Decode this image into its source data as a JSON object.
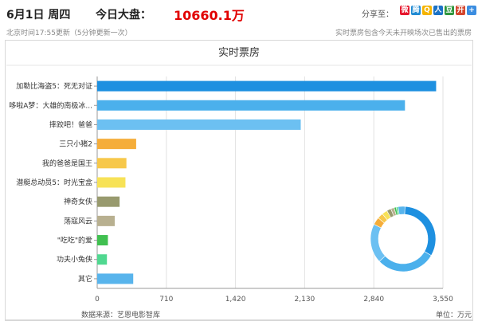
{
  "header": {
    "date": "6月1日 周四",
    "total_label": "今日大盘：",
    "total_value": "10660.1万",
    "share_label": "分享至：",
    "update_time": "北京时间17:55更新（5分钟更新一次）",
    "note": "实时票房包含今天未开映场次已售出的票房"
  },
  "share_icons": [
    {
      "name": "weibo-icon",
      "glyph": "微",
      "color": "#e6162d"
    },
    {
      "name": "tencent-weibo-icon",
      "glyph": "腾",
      "color": "#1f8ad2"
    },
    {
      "name": "qzone-icon",
      "glyph": "Q",
      "color": "#f5b400"
    },
    {
      "name": "renren-icon",
      "glyph": "人",
      "color": "#1c72c5"
    },
    {
      "name": "douban-icon",
      "glyph": "豆",
      "color": "#2e963d"
    },
    {
      "name": "kaixin-icon",
      "glyph": "开",
      "color": "#d4462d"
    },
    {
      "name": "more-icon",
      "glyph": "+",
      "color": "#3b8de0"
    }
  ],
  "chart_data": {
    "type": "bar",
    "orientation": "horizontal",
    "title": "实时票房",
    "categories": [
      "加勒比海盗5：死无对证",
      "哆啦A梦：大雄的南极冰...",
      "摔跤吧！爸爸",
      "三只小猪2",
      "我的爸爸是国王",
      "潜艇总动员5：时光宝盒",
      "神奇女侠",
      "荡寇风云",
      "\"吃吃\"的爱",
      "功夫小兔侠",
      "其它"
    ],
    "values": [
      3480,
      3160,
      2090,
      400,
      300,
      290,
      230,
      180,
      110,
      100,
      370
    ],
    "colors": [
      "#1e90e0",
      "#4bb0ec",
      "#6cc0f2",
      "#f5ad3a",
      "#f7c84a",
      "#f7e257",
      "#989a6e",
      "#b8b090",
      "#40c050",
      "#50d890",
      "#58b4ec"
    ],
    "xlim": [
      0,
      3550
    ],
    "xticks": [
      "0",
      "710",
      "1,420",
      "2,130",
      "2,840",
      "3,550"
    ],
    "grid": true,
    "source": "数据来源：艺恩电影智库",
    "unit": "单位：万元"
  }
}
